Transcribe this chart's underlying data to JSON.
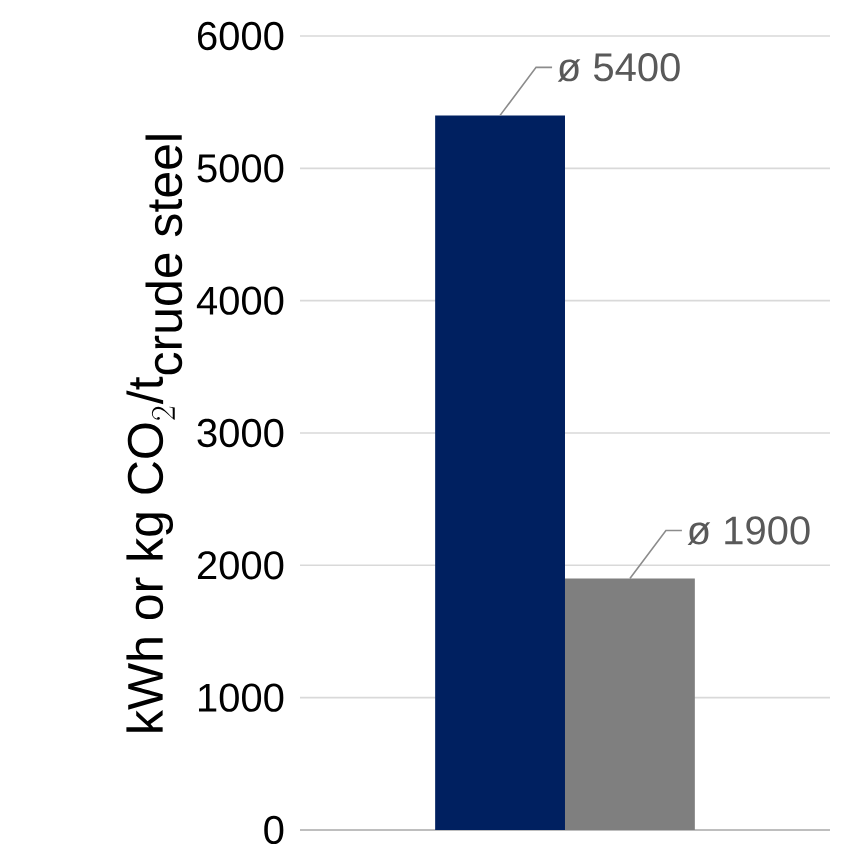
{
  "chart_data": {
    "type": "bar",
    "ylabel": "\\mbox{kWh or kg CO}_{2}\\mbox{/t}_{\\mbox{crude steel}}",
    "categories": [
      null
    ],
    "series": [
      {
        "color": "#002060",
        "values": [
          5400
        ],
        "value_labels": [
          "ø 5400"
        ]
      },
      {
        "color": "#7f7f7f",
        "values": [
          1900
        ],
        "value_labels": [
          "ø 1900"
        ]
      }
    ],
    "ylim": [
      0,
      6000
    ],
    "yticks": [
      0,
      1000,
      2000,
      3000,
      4000,
      5000,
      6000
    ],
    "grid": "y"
  }
}
